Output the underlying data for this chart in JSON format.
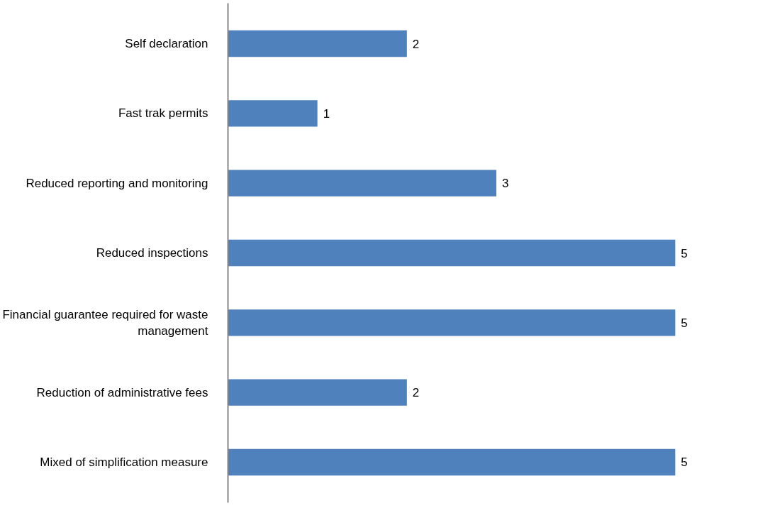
{
  "chart_data": {
    "type": "bar",
    "orientation": "horizontal",
    "categories": [
      "Self declaration",
      "Fast trak permits",
      "Reduced reporting and monitoring",
      "Reduced inspections",
      "Financial guarantee required for waste management",
      "Reduction of administrative fees",
      "Mixed of simplification measure"
    ],
    "values": [
      2,
      1,
      3,
      5,
      5,
      2,
      5
    ],
    "color": "#4f81bd",
    "tick_labels": "y",
    "data_labels": true
  }
}
